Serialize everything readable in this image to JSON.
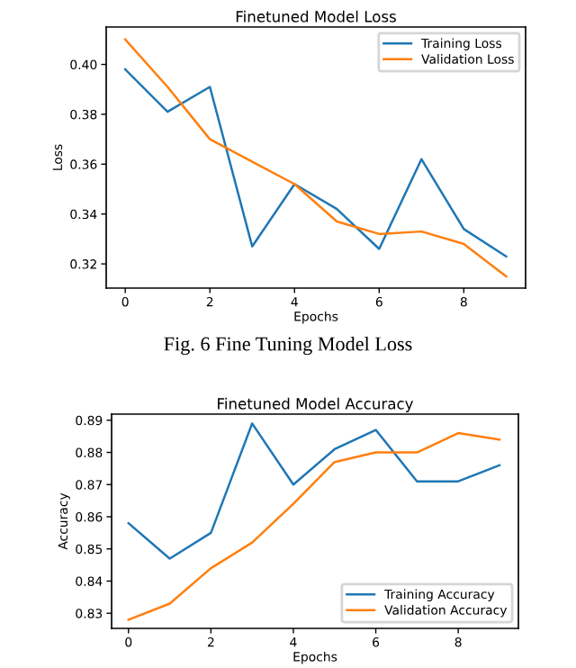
{
  "chart_data": [
    {
      "type": "line",
      "title": "Finetuned Model Loss",
      "xlabel": "Epochs",
      "ylabel": "Loss",
      "x": [
        0,
        1,
        2,
        3,
        4,
        5,
        6,
        7,
        8,
        9
      ],
      "xlim": [
        -0.45,
        9.46
      ],
      "xticks": [
        0,
        2,
        4,
        6,
        8
      ],
      "ylim": [
        0.3103,
        0.415
      ],
      "yticks": [
        {
          "value": 0.32,
          "label": "0.32"
        },
        {
          "value": 0.34,
          "label": "0.34"
        },
        {
          "value": 0.36,
          "label": "0.36"
        },
        {
          "value": 0.38,
          "label": "0.38"
        },
        {
          "value": 0.4,
          "label": "0.40"
        }
      ],
      "legend": "top right",
      "grid": false,
      "annotations": [
        "Fig. 6 Fine Tuning Model Loss"
      ],
      "series": [
        {
          "name": "Training Loss",
          "color": "#1f77b4",
          "values": [
            0.398,
            0.381,
            0.391,
            0.327,
            0.352,
            0.342,
            0.326,
            0.362,
            0.334,
            0.323
          ]
        },
        {
          "name": "Validation Loss",
          "color": "#ff7f0e",
          "values": [
            0.41,
            0.391,
            0.37,
            0.361,
            0.352,
            0.337,
            0.332,
            0.333,
            0.328,
            0.315
          ]
        }
      ]
    },
    {
      "type": "line",
      "title": "Finetuned Model Accuracy",
      "xlabel": "Epochs",
      "ylabel": "Accuracy",
      "x": [
        0,
        1,
        2,
        3,
        4,
        5,
        6,
        7,
        8,
        9
      ],
      "xlim": [
        -0.41,
        9.46
      ],
      "xticks": [
        0,
        2,
        4,
        6,
        8
      ],
      "ylim": [
        0.8253,
        0.8919
      ],
      "yticks": [
        0.83,
        0.84,
        0.85,
        0.86,
        0.87,
        0.88,
        0.89
      ],
      "legend": "bottom right",
      "grid": false,
      "series": [
        {
          "name": "Training Accuracy",
          "color": "#1f77b4",
          "values": [
            0.858,
            0.847,
            0.855,
            0.889,
            0.87,
            0.881,
            0.887,
            0.871,
            0.871,
            0.876
          ]
        },
        {
          "name": "Validation Accuracy",
          "color": "#ff7f0e",
          "values": [
            0.828,
            0.833,
            0.844,
            0.852,
            0.864,
            0.877,
            0.88,
            0.88,
            0.886,
            0.884
          ]
        }
      ]
    }
  ]
}
